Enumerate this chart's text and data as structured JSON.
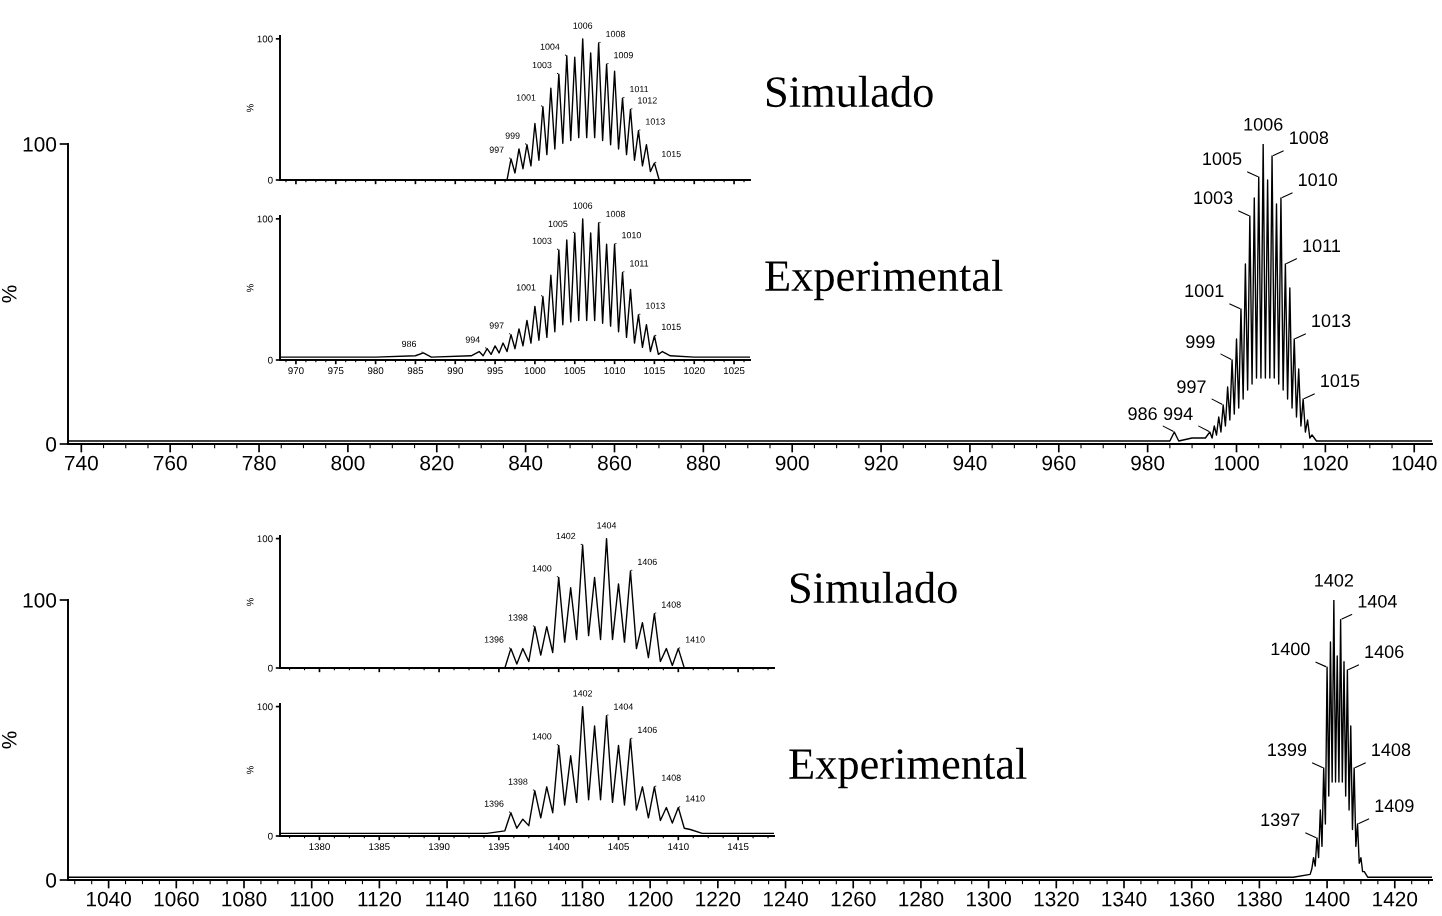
{
  "chart_data": [
    {
      "type": "line",
      "color": "#000000",
      "ylabel": "%",
      "xlim": [
        737,
        1044
      ],
      "ylim": [
        0,
        100
      ],
      "xticks": [
        740,
        760,
        780,
        800,
        820,
        840,
        860,
        880,
        900,
        920,
        940,
        960,
        980,
        1000,
        1020,
        1040
      ],
      "yticks": [
        0,
        100
      ],
      "x": [
        737,
        980,
        985,
        986,
        987,
        990,
        993,
        994,
        994.5,
        995,
        995.5,
        996,
        996.5,
        997,
        997.5,
        998,
        998.5,
        999,
        999.5,
        1000,
        1000.5,
        1001,
        1001.5,
        1002,
        1002.5,
        1003,
        1003.5,
        1004,
        1004.5,
        1005,
        1005.5,
        1006,
        1006.5,
        1007,
        1007.5,
        1008,
        1008.5,
        1009,
        1009.5,
        1010,
        1010.5,
        1011,
        1011.5,
        1012,
        1012.5,
        1013,
        1013.5,
        1014,
        1014.5,
        1015,
        1015.5,
        1016,
        1016.5,
        1017,
        1018,
        1020,
        1044
      ],
      "values": [
        1,
        1,
        1,
        4,
        1,
        2,
        2,
        4,
        2,
        6,
        3,
        9,
        4,
        13,
        6,
        19,
        8,
        28,
        10,
        35,
        12,
        45,
        15,
        60,
        18,
        76,
        20,
        82,
        22,
        89,
        22,
        100,
        22,
        88,
        22,
        96,
        22,
        80,
        20,
        82,
        18,
        60,
        15,
        52,
        12,
        35,
        9,
        25,
        6,
        15,
        4,
        8,
        2,
        3,
        1,
        1,
        1
      ],
      "annotations": [
        "Simulado",
        "Experimental",
        {
          "text": "986",
          "x": 986,
          "y": 4
        },
        {
          "text": "994",
          "x": 994,
          "y": 4
        },
        {
          "text": "997",
          "x": 997,
          "y": 13
        },
        {
          "text": "999",
          "x": 999,
          "y": 28
        },
        {
          "text": "1001",
          "x": 1001,
          "y": 45
        },
        {
          "text": "1003",
          "x": 1003,
          "y": 76
        },
        {
          "text": "1005",
          "x": 1005,
          "y": 89
        },
        {
          "text": "1006",
          "x": 1006,
          "y": 100
        },
        {
          "text": "1008",
          "x": 1008,
          "y": 96
        },
        {
          "text": "1010",
          "x": 1010,
          "y": 82
        },
        {
          "text": "1011",
          "x": 1011,
          "y": 60
        },
        {
          "text": "1013",
          "x": 1013,
          "y": 35
        },
        {
          "text": "1015",
          "x": 1015,
          "y": 15
        }
      ]
    },
    {
      "type": "line",
      "color": "#000000",
      "ylabel": "%",
      "tick_labels": "y",
      "xlim": [
        968,
        1027
      ],
      "ylim": [
        0,
        102
      ],
      "xticks": [
        {
          "value": 970,
          "label": null
        },
        {
          "value": 975,
          "label": null
        },
        {
          "value": 980,
          "label": null
        },
        {
          "value": 985,
          "label": null
        },
        {
          "value": 990,
          "label": null
        },
        {
          "value": 995,
          "label": null
        },
        {
          "value": 1000,
          "label": null
        },
        {
          "value": 1005,
          "label": null
        },
        {
          "value": 1010,
          "label": null
        },
        {
          "value": 1015,
          "label": null
        },
        {
          "value": 1020,
          "label": null
        },
        {
          "value": 1025,
          "label": null
        }
      ],
      "yticks": [
        0,
        100
      ],
      "x": [
        968,
        996.5,
        997,
        997.5,
        998,
        998.5,
        999,
        999.5,
        1000,
        1000.5,
        1001,
        1001.5,
        1002,
        1002.5,
        1003,
        1003.5,
        1004,
        1004.5,
        1005,
        1005.5,
        1006,
        1006.5,
        1007,
        1007.5,
        1008,
        1008.5,
        1009,
        1009.5,
        1010,
        1010.5,
        1011,
        1011.5,
        1012,
        1012.5,
        1013,
        1013.5,
        1014,
        1014.5,
        1015,
        1015.6,
        1027
      ],
      "values": [
        0,
        0,
        15,
        5,
        22,
        8,
        25,
        10,
        40,
        14,
        52,
        18,
        65,
        22,
        75,
        26,
        88,
        28,
        87,
        30,
        100,
        30,
        90,
        30,
        97,
        28,
        82,
        25,
        77,
        22,
        58,
        18,
        50,
        14,
        35,
        10,
        25,
        6,
        12,
        0,
        0
      ],
      "annotations": [
        {
          "text": "997",
          "x": 997,
          "y": 15
        },
        {
          "text": "999",
          "x": 999,
          "y": 25
        },
        {
          "text": "1001",
          "x": 1001,
          "y": 52
        },
        {
          "text": "1003",
          "x": 1003,
          "y": 75
        },
        {
          "text": "1004",
          "x": 1004,
          "y": 88
        },
        {
          "text": "1006",
          "x": 1006,
          "y": 100
        },
        {
          "text": "1008",
          "x": 1008,
          "y": 97
        },
        {
          "text": "1009",
          "x": 1009,
          "y": 82
        },
        {
          "text": "1011",
          "x": 1011,
          "y": 58
        },
        {
          "text": "1012",
          "x": 1012,
          "y": 50
        },
        {
          "text": "1013",
          "x": 1013,
          "y": 35
        },
        {
          "text": "1015",
          "x": 1015,
          "y": 12
        }
      ]
    },
    {
      "type": "line",
      "color": "#000000",
      "ylabel": "%",
      "xlim": [
        968,
        1027
      ],
      "ylim": [
        0,
        102
      ],
      "xticks": [
        970,
        975,
        980,
        985,
        990,
        995,
        1000,
        1005,
        1010,
        1015,
        1020,
        1025
      ],
      "yticks": [
        0,
        100
      ],
      "x": [
        968,
        980,
        985,
        986,
        987,
        992,
        993,
        993.5,
        994,
        994.5,
        995,
        995.5,
        996,
        996.5,
        997,
        997.5,
        998,
        998.5,
        999,
        999.5,
        1000,
        1000.5,
        1001,
        1001.5,
        1002,
        1002.5,
        1003,
        1003.5,
        1004,
        1004.5,
        1005,
        1005.5,
        1006,
        1006.5,
        1007,
        1007.5,
        1008,
        1008.5,
        1009,
        1009.5,
        1010,
        1010.5,
        1011,
        1011.5,
        1012,
        1012.5,
        1013,
        1013.5,
        1014,
        1014.5,
        1015,
        1015.5,
        1016,
        1017,
        1020,
        1027
      ],
      "values": [
        2,
        2,
        3,
        5,
        2,
        3,
        6,
        3,
        8,
        4,
        10,
        5,
        12,
        6,
        18,
        8,
        22,
        10,
        28,
        12,
        38,
        14,
        45,
        16,
        60,
        20,
        78,
        25,
        85,
        27,
        90,
        28,
        100,
        28,
        90,
        28,
        97,
        26,
        82,
        24,
        82,
        20,
        62,
        16,
        50,
        12,
        32,
        9,
        25,
        6,
        17,
        4,
        6,
        3,
        2,
        2
      ],
      "annotations": [
        {
          "text": "986",
          "x": 986,
          "y": 5
        },
        {
          "text": "994",
          "x": 994,
          "y": 8
        },
        {
          "text": "997",
          "x": 997,
          "y": 18
        },
        {
          "text": "1001",
          "x": 1001,
          "y": 45
        },
        {
          "text": "1003",
          "x": 1003,
          "y": 78
        },
        {
          "text": "1005",
          "x": 1005,
          "y": 90
        },
        {
          "text": "1006",
          "x": 1006,
          "y": 100
        },
        {
          "text": "1008",
          "x": 1008,
          "y": 97
        },
        {
          "text": "1010",
          "x": 1010,
          "y": 82
        },
        {
          "text": "1011",
          "x": 1011,
          "y": 62
        },
        {
          "text": "1013",
          "x": 1013,
          "y": 32
        },
        {
          "text": "1015",
          "x": 1015,
          "y": 17
        }
      ]
    },
    {
      "type": "line",
      "color": "#000000",
      "ylabel": "%",
      "xlim": [
        1028,
        1431
      ],
      "ylim": [
        0,
        100
      ],
      "xticks": [
        1040,
        1060,
        1080,
        1100,
        1120,
        1140,
        1160,
        1180,
        1200,
        1220,
        1240,
        1260,
        1280,
        1300,
        1320,
        1340,
        1360,
        1380,
        1400,
        1420
      ],
      "yticks": [
        0,
        100
      ],
      "x": [
        1028,
        1390,
        1395,
        1395.5,
        1396,
        1396.5,
        1397,
        1397.5,
        1398,
        1398.5,
        1399,
        1399.5,
        1400,
        1400.5,
        1401,
        1401.5,
        1402,
        1402.5,
        1403,
        1403.5,
        1404,
        1404.5,
        1405,
        1405.5,
        1406,
        1406.5,
        1407,
        1407.5,
        1408,
        1408.5,
        1409,
        1409.5,
        1410,
        1410.5,
        1411,
        1412,
        1431
      ],
      "values": [
        1,
        1,
        2,
        4,
        8,
        5,
        15,
        8,
        25,
        12,
        40,
        20,
        76,
        30,
        85,
        35,
        100,
        35,
        80,
        35,
        93,
        35,
        78,
        30,
        75,
        25,
        55,
        18,
        40,
        12,
        20,
        6,
        8,
        3,
        3,
        1,
        1
      ],
      "annotations": [
        "Simulado",
        "Experimental",
        {
          "text": "1397",
          "x": 1397,
          "y": 15
        },
        {
          "text": "1399",
          "x": 1399,
          "y": 40
        },
        {
          "text": "1400",
          "x": 1400,
          "y": 76
        },
        {
          "text": "1402",
          "x": 1402,
          "y": 100
        },
        {
          "text": "1404",
          "x": 1404,
          "y": 93
        },
        {
          "text": "1406",
          "x": 1406,
          "y": 75
        },
        {
          "text": "1408",
          "x": 1408,
          "y": 40
        },
        {
          "text": "1409",
          "x": 1409,
          "y": 20
        }
      ]
    },
    {
      "type": "line",
      "color": "#000000",
      "ylabel": "%",
      "tick_labels": "y",
      "xlim": [
        1376.7,
        1418
      ],
      "ylim": [
        0,
        102
      ],
      "xticks": [
        {
          "value": 1380,
          "label": null
        },
        {
          "value": 1385,
          "label": null
        },
        {
          "value": 1390,
          "label": null
        },
        {
          "value": 1395,
          "label": null
        },
        {
          "value": 1400,
          "label": null
        },
        {
          "value": 1405,
          "label": null
        },
        {
          "value": 1410,
          "label": null
        },
        {
          "value": 1415,
          "label": null
        }
      ],
      "yticks": [
        0,
        100
      ],
      "x": [
        1376.7,
        1395.5,
        1396,
        1396.5,
        1397,
        1397.5,
        1398,
        1398.5,
        1399,
        1399.5,
        1400,
        1400.5,
        1401,
        1401.5,
        1402,
        1402.5,
        1403,
        1403.5,
        1404,
        1404.5,
        1405,
        1405.5,
        1406,
        1406.5,
        1407,
        1407.5,
        1408,
        1408.5,
        1409,
        1409.5,
        1410,
        1410.5,
        1418
      ],
      "values": [
        0,
        0,
        15,
        3,
        15,
        5,
        32,
        10,
        32,
        12,
        70,
        20,
        62,
        22,
        95,
        25,
        70,
        22,
        100,
        22,
        65,
        20,
        75,
        15,
        35,
        8,
        42,
        5,
        15,
        2,
        15,
        0,
        0
      ],
      "annotations": [
        {
          "text": "1396",
          "x": 1396,
          "y": 15
        },
        {
          "text": "1398",
          "x": 1398,
          "y": 32
        },
        {
          "text": "1400",
          "x": 1400,
          "y": 70
        },
        {
          "text": "1402",
          "x": 1402,
          "y": 95
        },
        {
          "text": "1404",
          "x": 1404,
          "y": 100
        },
        {
          "text": "1406",
          "x": 1406,
          "y": 75
        },
        {
          "text": "1408",
          "x": 1408,
          "y": 42
        },
        {
          "text": "1410",
          "x": 1410,
          "y": 15
        }
      ]
    },
    {
      "type": "line",
      "color": "#000000",
      "ylabel": "%",
      "xlim": [
        1376.7,
        1418
      ],
      "ylim": [
        0,
        102
      ],
      "xticks": [
        1380,
        1385,
        1390,
        1395,
        1400,
        1405,
        1410,
        1415
      ],
      "yticks": [
        0,
        100
      ],
      "x": [
        1376.7,
        1394,
        1395.5,
        1396,
        1396.5,
        1397,
        1397.5,
        1398,
        1398.5,
        1399,
        1399.5,
        1400,
        1400.5,
        1401,
        1401.5,
        1402,
        1402.5,
        1403,
        1403.5,
        1404,
        1404.5,
        1405,
        1405.5,
        1406,
        1406.5,
        1407,
        1407.5,
        1408,
        1408.5,
        1409,
        1409.5,
        1410,
        1410.5,
        1411,
        1412,
        1418
      ],
      "values": [
        2,
        2,
        4,
        18,
        6,
        13,
        8,
        35,
        14,
        38,
        18,
        70,
        24,
        62,
        26,
        100,
        28,
        85,
        28,
        93,
        26,
        70,
        24,
        75,
        20,
        38,
        14,
        38,
        12,
        22,
        10,
        22,
        6,
        5,
        2,
        2
      ],
      "annotations": [
        {
          "text": "1396",
          "x": 1396,
          "y": 18
        },
        {
          "text": "1398",
          "x": 1398,
          "y": 35
        },
        {
          "text": "1400",
          "x": 1400,
          "y": 70
        },
        {
          "text": "1402",
          "x": 1402,
          "y": 100
        },
        {
          "text": "1404",
          "x": 1404,
          "y": 93
        },
        {
          "text": "1406",
          "x": 1406,
          "y": 75
        },
        {
          "text": "1408",
          "x": 1408,
          "y": 38
        },
        {
          "text": "1410",
          "x": 1410,
          "y": 22
        }
      ]
    }
  ]
}
